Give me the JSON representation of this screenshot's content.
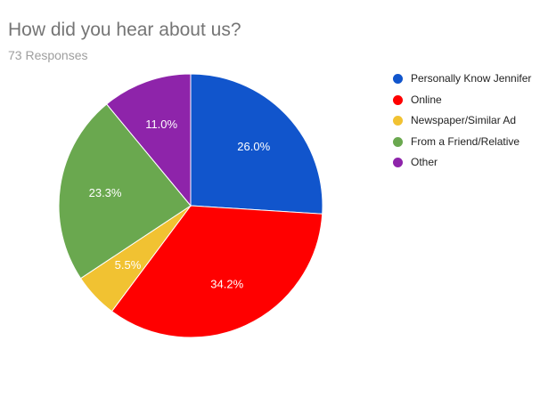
{
  "header": {
    "title": "How did you hear about us?",
    "subtitle": "73 Responses"
  },
  "chart_data": {
    "type": "pie",
    "title": "How did you hear about us?",
    "subtitle": "73 Responses",
    "legend_position": "right",
    "start_angle_deg": 0,
    "direction": "clockwise",
    "slices": [
      {
        "label": "Personally Know Jennifer",
        "value": 26.0,
        "display": "26.0%",
        "color": "#1155cc"
      },
      {
        "label": "Online",
        "value": 34.2,
        "display": "34.2%",
        "color": "#ff0000"
      },
      {
        "label": "Newspaper/Similar Ad",
        "value": 5.5,
        "display": "5.5%",
        "color": "#f1c232"
      },
      {
        "label": "From a Friend/Relative",
        "value": 23.3,
        "display": "23.3%",
        "color": "#6aa84f"
      },
      {
        "label": "Other",
        "value": 11.0,
        "display": "11.0%",
        "color": "#8e24aa"
      }
    ]
  }
}
